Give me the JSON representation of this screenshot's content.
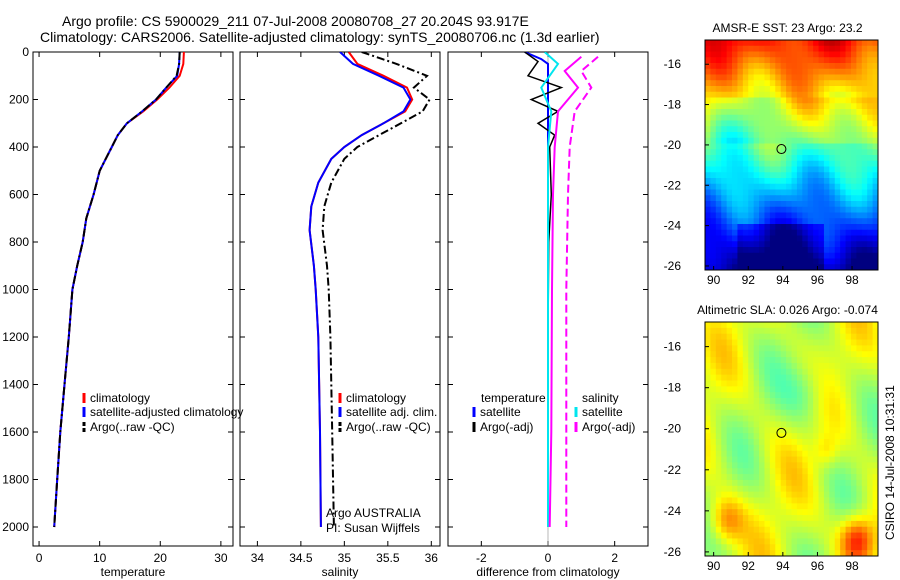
{
  "header": {
    "line1": "Argo profile: CS 5900029_211 07-Jul-2008 20080708_27 20.204S 93.917E",
    "line2": "Climatology: CARS2006. Satellite-adjusted climatology: synTS_20080706.nc (1.3d earlier)"
  },
  "stamp": "CSIRO 14-Jul-2008 10:31:31",
  "colors": {
    "clim": "#ff0000",
    "sat": "#0000ff",
    "argo": "#000000",
    "sat_sal": "#00e5ee",
    "argo_sal": "#ff00ff"
  },
  "chart_data": [
    {
      "type": "line",
      "xlabel": "temperature",
      "xlim": [
        -1,
        32
      ],
      "ylim": [
        2080,
        0
      ],
      "xticks": [
        0,
        10,
        20,
        30
      ],
      "yticks": [
        0,
        200,
        400,
        600,
        800,
        1000,
        1200,
        1400,
        1600,
        1800,
        2000
      ],
      "legend": {
        "placement": "lower-right",
        "entries": [
          "climatology",
          "satellite-adjusted climatology",
          "Argo(..raw -QC)"
        ]
      },
      "series": [
        {
          "name": "climatology",
          "key": "clim",
          "style": "solid",
          "x": [
            23.9,
            23.8,
            23.2,
            21.5,
            19.5,
            17.2,
            14.5,
            13.0,
            12.0,
            11.0,
            10.0,
            9.0,
            7.8,
            7.2,
            6.3,
            5.5,
            4.9,
            4.2,
            3.5,
            3.0,
            2.5
          ],
          "y": [
            0,
            50,
            100,
            150,
            200,
            250,
            300,
            350,
            400,
            450,
            500,
            600,
            700,
            800,
            900,
            1000,
            1200,
            1400,
            1600,
            1800,
            2000
          ]
        },
        {
          "name": "satellite-adjusted climatology",
          "key": "sat",
          "style": "solid",
          "x": [
            23.2,
            23.1,
            22.8,
            21.0,
            19.3,
            17.0,
            14.5,
            13.0,
            12.0,
            11.0,
            10.0,
            9.0,
            7.8,
            7.2,
            6.3,
            5.5,
            4.9,
            4.2,
            3.5,
            3.0,
            2.5
          ],
          "y": [
            0,
            50,
            100,
            150,
            200,
            250,
            300,
            350,
            400,
            450,
            500,
            600,
            700,
            800,
            900,
            1000,
            1200,
            1400,
            1600,
            1800,
            2000
          ]
        },
        {
          "name": "Argo(..raw -QC)",
          "key": "argo",
          "style": "dashdot",
          "x": [
            23.2,
            23.1,
            22.7,
            21.0,
            19.3,
            17.0,
            14.5,
            13.0,
            12.0,
            11.0,
            10.0,
            9.0,
            7.8,
            7.2,
            6.3,
            5.5,
            4.9,
            4.2,
            3.5,
            3.0,
            2.5
          ],
          "y": [
            0,
            50,
            100,
            150,
            200,
            250,
            300,
            350,
            400,
            450,
            500,
            600,
            700,
            800,
            900,
            1000,
            1200,
            1400,
            1600,
            1800,
            2000
          ]
        }
      ]
    },
    {
      "type": "line",
      "xlabel": "salinity",
      "xlim": [
        33.8,
        36.1
      ],
      "ylim": [
        2080,
        0
      ],
      "xticks": [
        34,
        34.5,
        35,
        35.5,
        36
      ],
      "legend": {
        "placement": "lower-right",
        "entries": [
          "climatology",
          "satellite adj. clim.",
          "Argo(..raw -QC)"
        ]
      },
      "annotations": [
        "Argo AUSTRALIA",
        "PI: Susan Wijffels"
      ],
      "series": [
        {
          "name": "climatology",
          "key": "clim",
          "style": "solid",
          "x": [
            35.05,
            35.15,
            35.45,
            35.72,
            35.78,
            35.7,
            35.45,
            35.2,
            35.0,
            34.85,
            34.7,
            34.62,
            34.6,
            34.65,
            34.67,
            34.7,
            34.72,
            34.73
          ],
          "y": [
            0,
            50,
            100,
            150,
            200,
            250,
            300,
            350,
            400,
            450,
            550,
            650,
            750,
            900,
            1000,
            1200,
            1600,
            2000
          ]
        },
        {
          "name": "satellite adj. clim.",
          "key": "sat",
          "style": "solid",
          "x": [
            34.95,
            35.1,
            35.4,
            35.68,
            35.76,
            35.68,
            35.45,
            35.2,
            35.0,
            34.85,
            34.7,
            34.62,
            34.6,
            34.65,
            34.67,
            34.7,
            34.72,
            34.73
          ],
          "y": [
            0,
            50,
            100,
            150,
            200,
            250,
            300,
            350,
            400,
            450,
            550,
            650,
            750,
            900,
            1000,
            1200,
            1600,
            2000
          ]
        },
        {
          "name": "Argo(..raw -QC)",
          "key": "argo",
          "style": "dashdot",
          "x": [
            35.2,
            35.6,
            35.95,
            35.8,
            35.98,
            35.9,
            35.65,
            35.4,
            35.15,
            35.0,
            34.85,
            34.77,
            34.75,
            34.8,
            34.82,
            34.84,
            34.86,
            34.88
          ],
          "y": [
            0,
            50,
            100,
            150,
            200,
            250,
            300,
            350,
            400,
            450,
            550,
            650,
            750,
            900,
            1000,
            1200,
            1600,
            2000
          ]
        }
      ]
    },
    {
      "type": "line",
      "xlabel": "difference from climatology",
      "xlim": [
        -3,
        3
      ],
      "ylim": [
        2080,
        0
      ],
      "xticks": [
        -2,
        0,
        2
      ],
      "legend": {
        "placement": "lower-center",
        "entries": [
          "temperature",
          "satellite",
          "Argo(-adj)",
          "salinity",
          "satellite",
          "Argo(-adj)"
        ]
      },
      "series": [
        {
          "name": "satellite",
          "key": "sat",
          "style": "solid",
          "x": [
            -0.7,
            -0.2,
            0,
            0,
            0,
            0,
            0,
            0,
            0,
            0,
            0
          ],
          "y": [
            0,
            30,
            50,
            100,
            200,
            400,
            800,
            1200,
            1600,
            1800,
            2000
          ]
        },
        {
          "name": "Argo(-adj)",
          "key": "argo",
          "style": "solid",
          "x": [
            -0.7,
            -0.3,
            -0.6,
            0.4,
            -0.5,
            0.3,
            -0.3,
            0.2,
            0.05,
            0.1,
            0.02,
            0,
            0,
            0
          ],
          "y": [
            0,
            40,
            100,
            150,
            200,
            250,
            300,
            350,
            400,
            600,
            800,
            1200,
            1600,
            2000
          ]
        },
        {
          "name": "satellite",
          "key": "sat_sal",
          "style": "solid",
          "x": [
            -0.1,
            0.3,
            -0.2,
            0.1,
            0,
            0,
            0,
            0
          ],
          "y": [
            0,
            50,
            150,
            250,
            400,
            800,
            1200,
            2000
          ]
        },
        {
          "name": "Argo(-adj)",
          "key": "argo_sal",
          "style": "solid",
          "x": [
            1.0,
            0.5,
            0.9,
            0.3,
            0.2,
            0.15,
            0.12,
            0.1,
            0.05
          ],
          "y": [
            20,
            80,
            150,
            250,
            400,
            600,
            1000,
            1600,
            2000
          ]
        },
        {
          "name": "Argo(-adj)",
          "key": "argo_sal",
          "style": "dashed",
          "x": [
            1.5,
            1.0,
            1.3,
            0.8,
            0.65,
            0.6,
            0.55,
            0.55,
            0.55
          ],
          "y": [
            20,
            80,
            150,
            250,
            400,
            600,
            1000,
            1600,
            2000
          ]
        }
      ]
    },
    {
      "type": "heatmap",
      "title": "AMSR-E SST: 23 Argo: 23.2",
      "xlim": [
        89.5,
        99.5
      ],
      "ylim": [
        -26.2,
        -14.8
      ],
      "xticks": [
        90,
        92,
        94,
        96,
        98
      ],
      "yticks": [
        -16,
        -18,
        -20,
        -22,
        -24,
        -26
      ],
      "marker": {
        "x": 93.917,
        "y": -20.204
      }
    },
    {
      "type": "heatmap",
      "title": "Altimetric SLA: 0.026 Argo: -0.074",
      "xlim": [
        89.5,
        99.5
      ],
      "ylim": [
        -26.2,
        -14.8
      ],
      "xticks": [
        90,
        92,
        94,
        96,
        98
      ],
      "yticks": [
        -16,
        -18,
        -20,
        -22,
        -24,
        -26
      ],
      "marker": {
        "x": 93.917,
        "y": -20.204
      }
    }
  ]
}
